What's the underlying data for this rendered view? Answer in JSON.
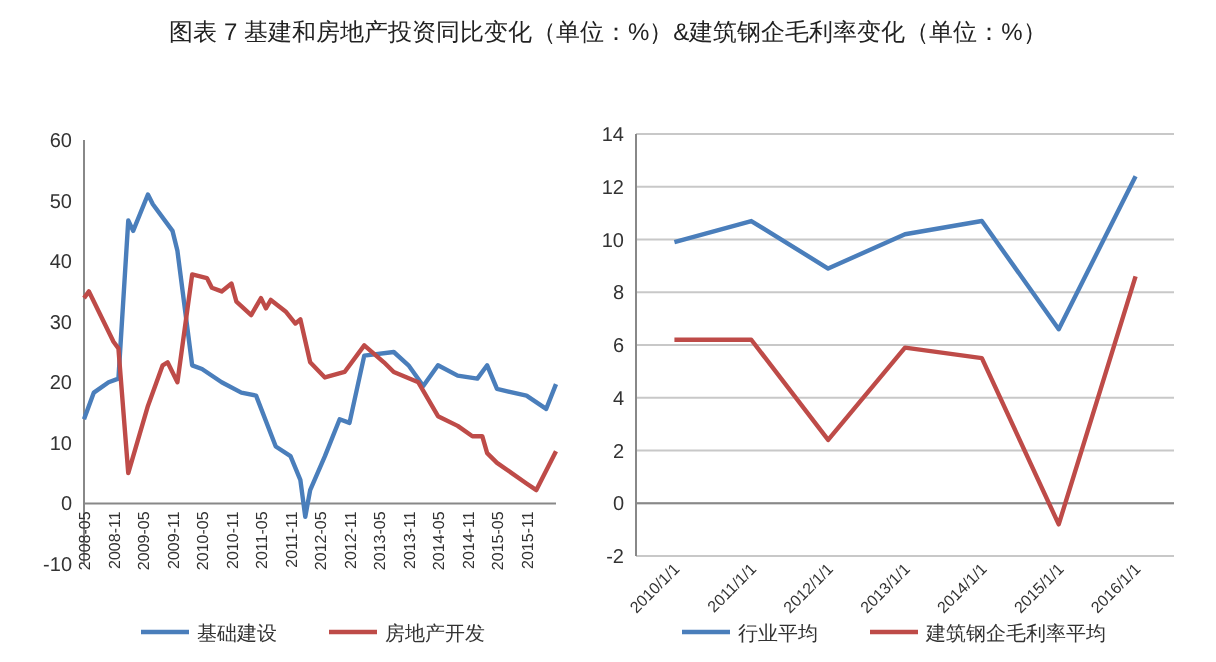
{
  "chart_data": [
    {
      "type": "line",
      "title": "图表 7  基建和房地产投资同比变化（单位：%）&建筑钢企毛利率变化（单位：%）",
      "legend": "bottom",
      "xlim": [
        "2008-05",
        "2016-05"
      ],
      "ylim": [
        -10,
        60
      ],
      "yticks": [
        -10,
        0,
        10,
        20,
        30,
        40,
        50,
        60
      ],
      "xticks": [
        "2008-05",
        "2008-11",
        "2009-05",
        "2009-11",
        "2010-05",
        "2010-11",
        "2011-05",
        "2011-11",
        "2012-05",
        "2012-11",
        "2013-05",
        "2013-11",
        "2014-05",
        "2014-11",
        "2015-05",
        "2015-11"
      ],
      "series": [
        {
          "name": "基础建设",
          "color": "#4a7ebb",
          "x": [
            "2008-05",
            "2008-07",
            "2008-10",
            "2008-12",
            "2009-02",
            "2009-03",
            "2009-06",
            "2009-07",
            "2009-11",
            "2009-12",
            "2010-03",
            "2010-05",
            "2010-09",
            "2011-01",
            "2011-04",
            "2011-08",
            "2011-11",
            "2012-01",
            "2012-02",
            "2012-03",
            "2012-06",
            "2012-09",
            "2012-11",
            "2013-02",
            "2013-08",
            "2013-11",
            "2014-02",
            "2014-05",
            "2014-09",
            "2015-01",
            "2015-03",
            "2015-05",
            "2015-11",
            "2016-03",
            "2016-05"
          ],
          "values": [
            13.9,
            18.3,
            20,
            20.6,
            46.7,
            45,
            51,
            49.4,
            45,
            41.7,
            22.8,
            22.2,
            20,
            18.3,
            17.8,
            9.4,
            7.8,
            3.9,
            -2.2,
            2.2,
            7.8,
            13.9,
            13.3,
            24.4,
            25,
            22.8,
            19.4,
            22.8,
            21.1,
            20.6,
            22.8,
            18.9,
            17.8,
            15.6,
            19.7
          ]
        },
        {
          "name": "房地产开发",
          "color": "#be4b48",
          "x": [
            "2008-05",
            "2008-06",
            "2008-11",
            "2008-12",
            "2009-02",
            "2009-06",
            "2009-09",
            "2009-10",
            "2009-12",
            "2010-03",
            "2010-06",
            "2010-07",
            "2010-09",
            "2010-11",
            "2010-12",
            "2011-03",
            "2011-05",
            "2011-06",
            "2011-07",
            "2011-10",
            "2011-12",
            "2012-01",
            "2012-03",
            "2012-06",
            "2012-10",
            "2013-02",
            "2013-06",
            "2013-08",
            "2014-01",
            "2014-05",
            "2014-09",
            "2014-12",
            "2015-02",
            "2015-03",
            "2015-05",
            "2015-11",
            "2016-01",
            "2016-05"
          ],
          "values": [
            33.9,
            35,
            26.7,
            25.6,
            5,
            16.1,
            22.8,
            23.3,
            20,
            37.8,
            37.2,
            35.6,
            35,
            36.3,
            33.3,
            31.1,
            33.9,
            32.2,
            33.6,
            31.7,
            29.7,
            30.4,
            23.3,
            20.8,
            21.7,
            26.1,
            23.3,
            21.7,
            20,
            14.4,
            12.8,
            11.1,
            11.1,
            8.3,
            6.7,
            3.3,
            2.2,
            8.6
          ]
        }
      ]
    },
    {
      "type": "line",
      "legend": "bottom",
      "grid": "y",
      "ylim": [
        -2,
        14
      ],
      "yticks": [
        -2,
        0,
        2,
        4,
        6,
        8,
        10,
        12,
        14
      ],
      "categories": [
        "2010/1/1",
        "2011/1/1",
        "2012/1/1",
        "2013/1/1",
        "2014/1/1",
        "2015/1/1",
        "2016/1/1"
      ],
      "series": [
        {
          "name": "行业平均",
          "color": "#4a7ebb",
          "values": [
            9.9,
            10.7,
            8.9,
            10.2,
            10.7,
            6.6,
            12.4
          ]
        },
        {
          "name": "建筑钢企毛利率平均",
          "color": "#be4b48",
          "values": [
            6.2,
            6.2,
            2.4,
            5.9,
            5.5,
            -0.8,
            8.6
          ]
        }
      ]
    }
  ]
}
